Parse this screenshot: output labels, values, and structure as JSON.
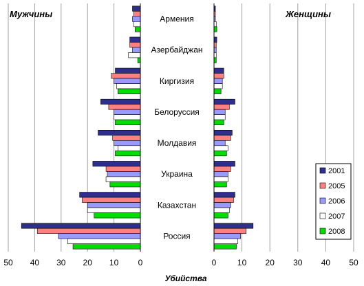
{
  "chart_data": {
    "type": "bar",
    "orientation": "horizontal",
    "title_left": "Мужчины",
    "title_right": "Женщины",
    "xlabel": "Убийства",
    "categories": [
      "Армения",
      "Азербайджан",
      "Киргизия",
      "Белоруссия",
      "Молдавия",
      "Украина",
      "Казахстан",
      "Россия"
    ],
    "xlim_left": [
      0,
      50
    ],
    "xlim_right": [
      0,
      50
    ],
    "x_ticks": [
      0,
      10,
      20,
      30,
      40,
      50
    ],
    "grid": true,
    "legend_position": "bottom-right",
    "panels": [
      {
        "name": "Мужчины",
        "series": [
          {
            "name": "2001",
            "color": "#2e2e8c",
            "values": [
              3,
              4,
              9.5,
              15,
              16,
              18,
              23,
              45
            ]
          },
          {
            "name": "2005",
            "color": "#ff8080",
            "values": [
              2.5,
              4,
              11,
              12,
              10.5,
              13,
              22,
              39
            ]
          },
          {
            "name": "2006",
            "color": "#9999ff",
            "values": [
              3,
              3,
              10,
              10,
              10,
              12.5,
              20,
              31
            ]
          },
          {
            "name": "2007",
            "color": "#ffffff",
            "values": [
              2.5,
              4.5,
              9,
              10,
              8.5,
              13,
              20,
              27.5
            ]
          },
          {
            "name": "2008",
            "color": "#00dd00",
            "values": [
              2,
              1,
              8.5,
              9.5,
              9.5,
              11.5,
              17.5,
              25.5
            ]
          }
        ]
      },
      {
        "name": "Женщины",
        "series": [
          {
            "name": "2001",
            "color": "#2e2e8c",
            "values": [
              0.5,
              1,
              3.5,
              7.5,
              6.5,
              7.5,
              7.5,
              14
            ]
          },
          {
            "name": "2005",
            "color": "#ff8080",
            "values": [
              0.5,
              0.8,
              3.5,
              5.5,
              6,
              6,
              7,
              11.5
            ]
          },
          {
            "name": "2006",
            "color": "#9999ff",
            "values": [
              0.5,
              0.8,
              3,
              4,
              4,
              5,
              6,
              9.5
            ]
          },
          {
            "name": "2007",
            "color": "#ffffff",
            "values": [
              0.8,
              0.8,
              3,
              4,
              5,
              5,
              5.5,
              8.5
            ]
          },
          {
            "name": "2008",
            "color": "#00dd00",
            "values": [
              1,
              0.8,
              2.5,
              3.5,
              4.5,
              4.5,
              5,
              8
            ]
          }
        ]
      }
    ]
  }
}
